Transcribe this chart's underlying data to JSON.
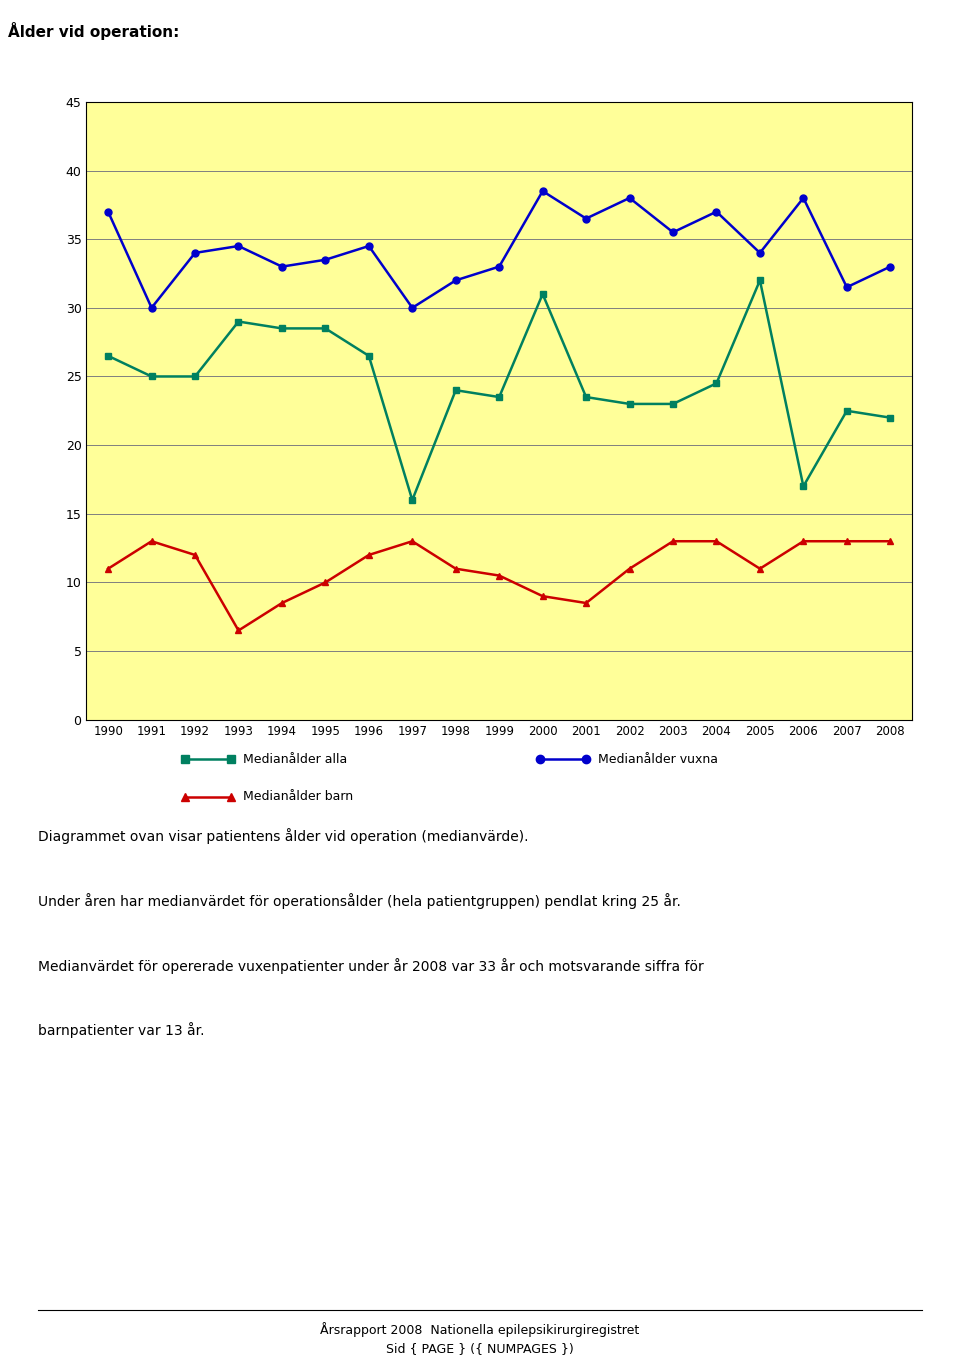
{
  "title": "Ålder vid operation:",
  "years": [
    1990,
    1991,
    1992,
    1993,
    1994,
    1995,
    1996,
    1997,
    1998,
    1999,
    2000,
    2001,
    2002,
    2003,
    2004,
    2005,
    2006,
    2007,
    2008
  ],
  "median_alla": [
    26.5,
    25,
    25,
    29,
    28.5,
    28.5,
    26.5,
    16,
    24,
    23.5,
    31,
    23.5,
    23,
    23,
    24.5,
    32,
    17,
    22.5,
    22
  ],
  "median_vuxna": [
    37,
    30,
    34,
    34.5,
    33,
    33.5,
    34.5,
    30,
    32,
    33,
    38.5,
    36.5,
    38,
    35.5,
    37,
    34,
    38,
    31.5,
    33
  ],
  "median_barn": [
    11,
    13,
    12,
    6.5,
    8.5,
    10,
    12,
    13,
    11,
    10.5,
    9,
    8.5,
    11,
    13,
    13,
    11,
    13,
    13,
    13
  ],
  "alla_color": "#008060",
  "vuxna_color": "#0000CC",
  "barn_color": "#CC0000",
  "plot_area_bg": "#FFFF99",
  "ylim": [
    0,
    45
  ],
  "yticks": [
    0,
    5,
    10,
    15,
    20,
    25,
    30,
    35,
    40,
    45
  ],
  "legend_alla": "Medianålder alla",
  "legend_vuxna": "Medianålder vuxna",
  "legend_barn": "Medianålder barn",
  "text1": "Diagrammet ovan visar patientens ålder vid operation (medianvärde).",
  "text2": "Under åren har medianvärdet för operationsålder (hela patientgruppen) pendlat kring 25 år.",
  "text3": "Medianvärdet för opererade vuxenpatienter under år 2008 var 33 år och motsvarande siffra för",
  "text4": "barnpatienter var 13 år.",
  "footer_line1": "Årsrapport 2008  Nationella epilepsikirurgiregistret",
  "footer_line2": "Sid { PAGE } ({ NUMPAGES })",
  "header_bg": "#C0C0C0",
  "header_text": "Ålder vid operation:",
  "header_fontsize": 11
}
